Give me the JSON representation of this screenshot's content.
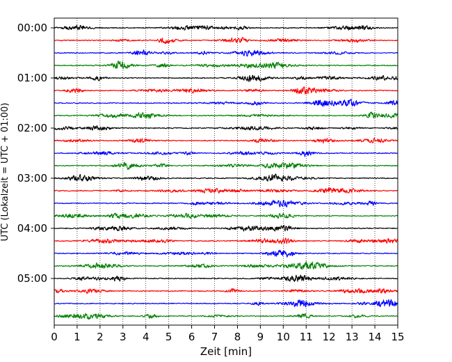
{
  "chart_data": {
    "type": "line",
    "title": "",
    "xlabel": "Zeit  [min]",
    "ylabel": "UTC (Lokalzeit = UTC + 01:00)",
    "xlim": [
      0,
      15
    ],
    "x_ticks": [
      "0",
      "1",
      "2",
      "3",
      "4",
      "5",
      "6",
      "7",
      "8",
      "9",
      "10",
      "11",
      "12",
      "13",
      "14",
      "15"
    ],
    "y_tick_labels": [
      "00:00",
      "01:00",
      "02:00",
      "03:00",
      "04:00",
      "05:00"
    ],
    "grid": "vertical-dotted",
    "trace_colors": [
      "#000000",
      "#ff0000",
      "#0000ff",
      "#008000"
    ],
    "trace_start_times": [
      "00:00",
      "00:15",
      "00:30",
      "00:45",
      "01:00",
      "01:15",
      "01:30",
      "01:45",
      "02:00",
      "02:15",
      "02:30",
      "02:45",
      "03:00",
      "03:15",
      "03:30",
      "03:45",
      "04:00",
      "04:15",
      "04:30",
      "04:45",
      "05:00",
      "05:15",
      "05:30",
      "05:45"
    ]
  }
}
